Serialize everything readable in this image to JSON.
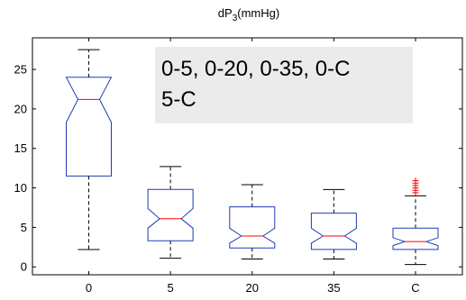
{
  "chart_data": {
    "type": "boxplot",
    "title": "dP",
    "title_subscript": "3",
    "title_suffix": "(mmHg)",
    "xlabel": "",
    "ylabel": "",
    "categories": [
      "0",
      "5",
      "20",
      "35",
      "C"
    ],
    "ylim": [
      -1,
      29
    ],
    "yticks": [
      0,
      5,
      10,
      15,
      20,
      25
    ],
    "notched": true,
    "grid": false,
    "colors": {
      "box": "#1f3bb3",
      "median": "#ff0000",
      "whisker": "#000000",
      "outlier": "#ff0000"
    },
    "boxes": [
      {
        "category": "0",
        "whisker_low": 2.2,
        "q1": 11.5,
        "notch_low": 18.3,
        "median": 21.2,
        "notch_high": 24.0,
        "q3": 24.0,
        "whisker_high": 27.5,
        "outliers": []
      },
      {
        "category": "5",
        "whisker_low": 1.1,
        "q1": 3.3,
        "notch_low": 4.9,
        "median": 6.1,
        "notch_high": 7.4,
        "q3": 9.8,
        "whisker_high": 12.7,
        "outliers": []
      },
      {
        "category": "20",
        "whisker_low": 1.0,
        "q1": 2.4,
        "notch_low": 3.0,
        "median": 3.9,
        "notch_high": 4.9,
        "q3": 7.6,
        "whisker_high": 10.4,
        "outliers": []
      },
      {
        "category": "35",
        "whisker_low": 1.0,
        "q1": 2.2,
        "notch_low": 3.0,
        "median": 3.9,
        "notch_high": 4.9,
        "q3": 6.8,
        "whisker_high": 9.8,
        "outliers": []
      },
      {
        "category": "C",
        "whisker_low": 0.3,
        "q1": 2.2,
        "notch_low": 2.7,
        "median": 3.2,
        "notch_high": 3.7,
        "q3": 4.9,
        "whisker_high": 9.0,
        "outliers": [
          9.4,
          9.7,
          10.0,
          10.3,
          10.6,
          10.9
        ]
      }
    ],
    "annotation": {
      "lines": [
        "0-5, 0-20, 0-35, 0-C",
        "5-C"
      ],
      "background": "#ebebeb"
    }
  }
}
